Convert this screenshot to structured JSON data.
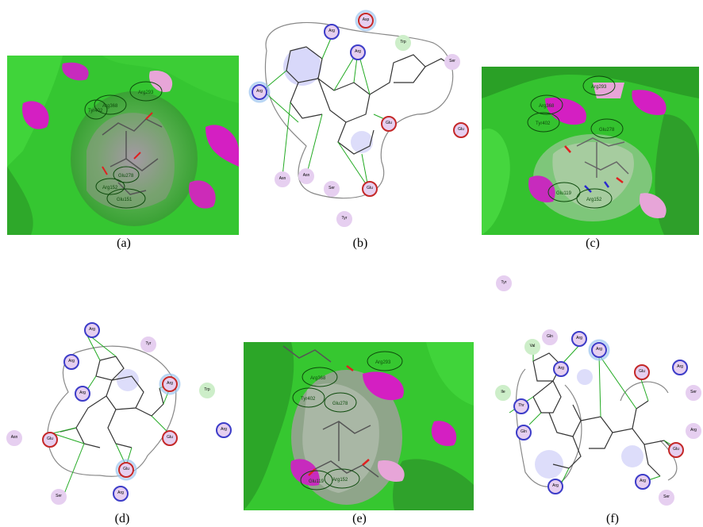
{
  "figure": {
    "panels": [
      {
        "caption": "(a)",
        "kind": "surface",
        "labels": [
          "Arg293",
          "Arg368",
          "Tyr402",
          "Glu278",
          "Arg152",
          "Glu151"
        ]
      },
      {
        "caption": "(b)",
        "kind": "interaction",
        "labels": [
          "Arg",
          "Asp",
          "Arg",
          "Trp",
          "Arg",
          "Ser",
          "Glu",
          "Glu",
          "Asn",
          "Asn",
          "Ser",
          "Glu",
          "Tyr"
        ]
      },
      {
        "caption": "(c)",
        "kind": "surface",
        "labels": [
          "Arg293",
          "Arg368",
          "Tyr402",
          "Glu278",
          "Glu119",
          "Arg152"
        ]
      },
      {
        "caption": "(d)",
        "kind": "interaction",
        "labels": [
          "Arg",
          "Tyr",
          "Arg",
          "Arg",
          "Arg",
          "Trp",
          "Glu",
          "Glu",
          "Asn",
          "Arg",
          "Glu",
          "Ser",
          "Arg"
        ]
      },
      {
        "caption": "(e)",
        "kind": "surface",
        "labels": [
          "Arg293",
          "Arg368",
          "Tyr402",
          "Glu278",
          "Glu119",
          "Arg152"
        ]
      },
      {
        "caption": "(f)",
        "kind": "interaction",
        "labels": [
          "Tyr",
          "Val",
          "Gln",
          "Arg",
          "Arg",
          "Arg",
          "Glu",
          "Arg",
          "Ser",
          "Ile",
          "Thr",
          "Gln",
          "Arg",
          "Arg",
          "Glu",
          "Arg",
          "Ser"
        ]
      }
    ]
  },
  "colors": {
    "surface_green": "#3fd23a",
    "surface_dark": "#1f7f1c",
    "surface_magenta": "#d41fc2",
    "surface_pink": "#e7a5d8",
    "residue_polar": "#e6cff0",
    "residue_basic_ring": "#3c3cc8",
    "residue_acidic_ring": "#c42828",
    "residue_greasy": "#cdeec9",
    "hbond": "#22aa22"
  }
}
